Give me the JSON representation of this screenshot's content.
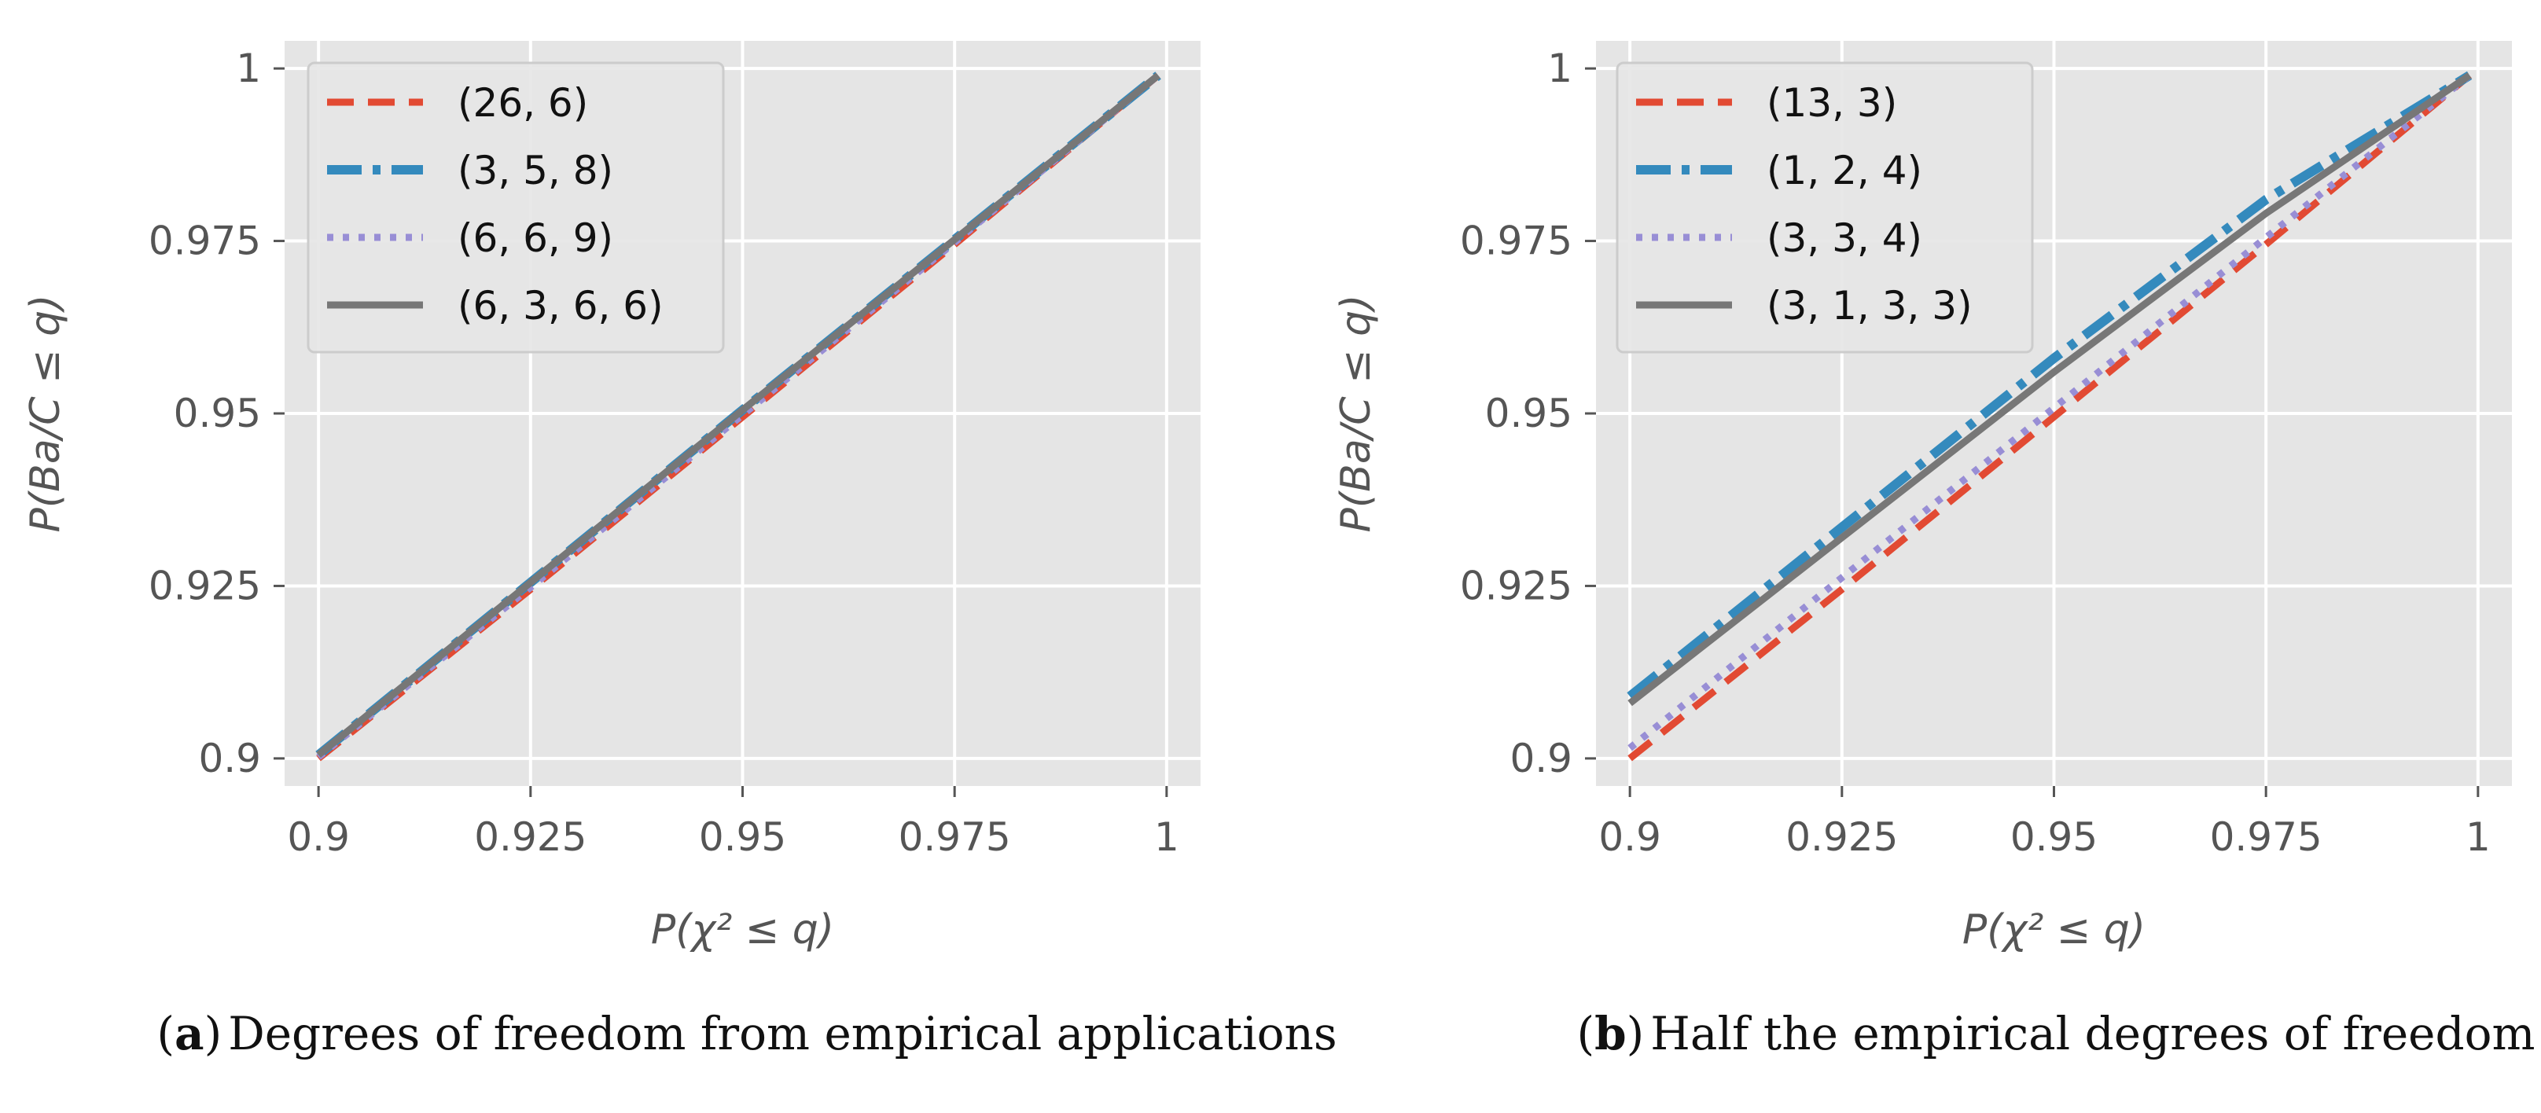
{
  "figure": {
    "captions": [
      {
        "letter": "a",
        "text": "Degrees of freedom from empirical applications"
      },
      {
        "letter": "b",
        "text": "Half the empirical degrees of freedom"
      }
    ]
  },
  "colors": {
    "panel_bg": "#e5e5e5",
    "grid": "#ffffff",
    "tick": "#555555",
    "legend_bg": "#e5e5e5",
    "legend_border": "#cccccc"
  },
  "chart_data": [
    {
      "type": "line",
      "panel": "a",
      "title": "",
      "xlabel": "P(χ² ≤ q)",
      "ylabel": "P(Ba/C ≤ q)",
      "xlim": [
        0.896,
        1.004
      ],
      "ylim": [
        0.896,
        1.004
      ],
      "xticks": [
        0.9,
        0.925,
        0.95,
        0.975,
        1.0
      ],
      "xtick_labels": [
        "0.9",
        "0.925",
        "0.95",
        "0.975",
        "1"
      ],
      "yticks": [
        0.9,
        0.925,
        0.95,
        0.975,
        1.0
      ],
      "ytick_labels": [
        "0.9",
        "0.925",
        "0.95",
        "0.975",
        "1"
      ],
      "grid": true,
      "legend_position": "top-left",
      "series": [
        {
          "name": "(26, 6)",
          "color": "#e24a33",
          "style": "dashed",
          "x": [
            0.9,
            0.925,
            0.95,
            0.975,
            0.999
          ],
          "y": [
            0.9,
            0.9245,
            0.9495,
            0.9745,
            0.999
          ]
        },
        {
          "name": "(3, 5, 8)",
          "color": "#348abd",
          "style": "dashdot",
          "x": [
            0.9,
            0.925,
            0.95,
            0.975,
            0.999
          ],
          "y": [
            0.9005,
            0.9255,
            0.9505,
            0.9752,
            0.999
          ]
        },
        {
          "name": "(6, 6, 9)",
          "color": "#988ed5",
          "style": "dotted",
          "x": [
            0.9,
            0.925,
            0.95,
            0.975,
            0.999
          ],
          "y": [
            0.9002,
            0.9248,
            0.9498,
            0.9748,
            0.999
          ]
        },
        {
          "name": "(6, 3, 6, 6)",
          "color": "#777777",
          "style": "solid",
          "x": [
            0.9,
            0.925,
            0.95,
            0.975,
            0.999
          ],
          "y": [
            0.9005,
            0.9255,
            0.9505,
            0.9752,
            0.999
          ]
        }
      ]
    },
    {
      "type": "line",
      "panel": "b",
      "title": "",
      "xlabel": "P(χ² ≤ q)",
      "ylabel": "P(Ba/C ≤ q)",
      "xlim": [
        0.896,
        1.004
      ],
      "ylim": [
        0.896,
        1.004
      ],
      "xticks": [
        0.9,
        0.925,
        0.95,
        0.975,
        1.0
      ],
      "xtick_labels": [
        "0.9",
        "0.925",
        "0.95",
        "0.975",
        "1"
      ],
      "yticks": [
        0.9,
        0.925,
        0.95,
        0.975,
        1.0
      ],
      "ytick_labels": [
        "0.9",
        "0.925",
        "0.95",
        "0.975",
        "1"
      ],
      "grid": true,
      "legend_position": "top-left",
      "series": [
        {
          "name": "(13, 3)",
          "color": "#e24a33",
          "style": "dashed",
          "x": [
            0.9,
            0.925,
            0.95,
            0.975,
            0.999
          ],
          "y": [
            0.9,
            0.9245,
            0.9495,
            0.9745,
            0.999
          ]
        },
        {
          "name": "(1, 2, 4)",
          "color": "#348abd",
          "style": "dashdot",
          "x": [
            0.9,
            0.925,
            0.95,
            0.975,
            0.999
          ],
          "y": [
            0.909,
            0.9335,
            0.958,
            0.981,
            0.999
          ]
        },
        {
          "name": "(3, 3, 4)",
          "color": "#988ed5",
          "style": "dotted",
          "x": [
            0.9,
            0.925,
            0.95,
            0.975,
            0.999
          ],
          "y": [
            0.9015,
            0.9262,
            0.9508,
            0.9755,
            0.999
          ]
        },
        {
          "name": "(3, 1, 3, 3)",
          "color": "#777777",
          "style": "solid",
          "x": [
            0.9,
            0.925,
            0.95,
            0.975,
            0.999
          ],
          "y": [
            0.908,
            0.932,
            0.956,
            0.979,
            0.999
          ]
        }
      ]
    }
  ]
}
